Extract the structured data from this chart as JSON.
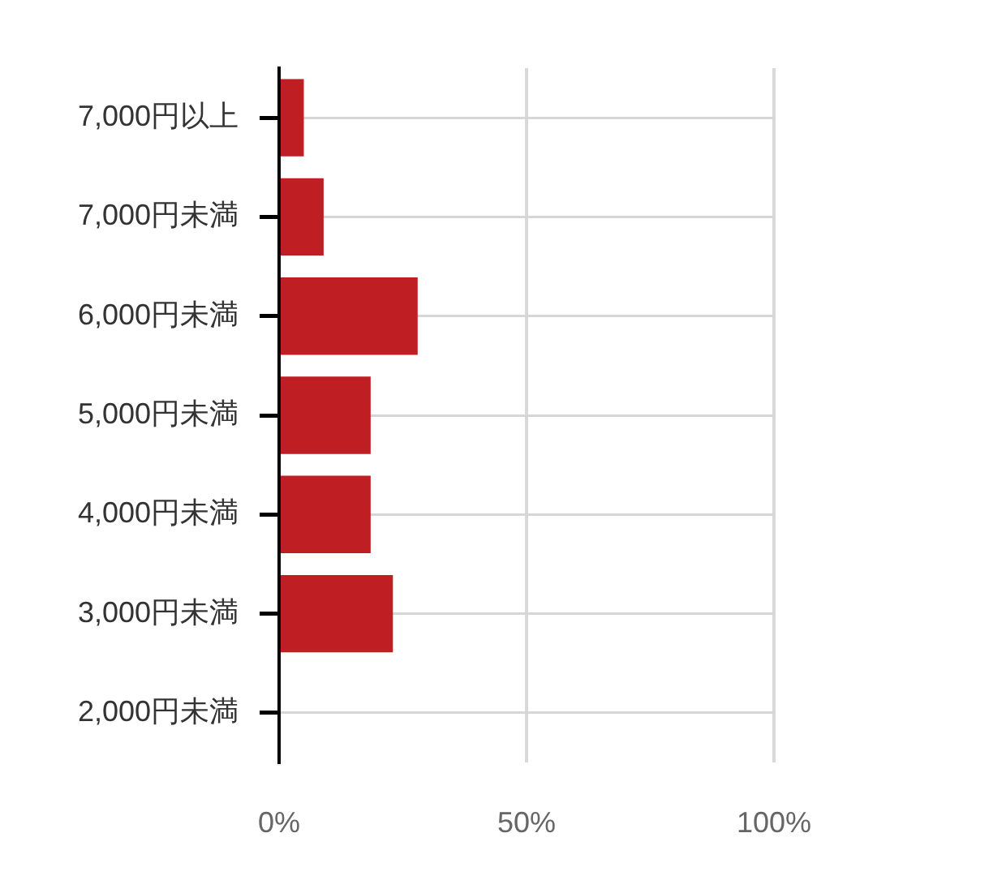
{
  "chart_data": {
    "type": "bar",
    "orientation": "horizontal",
    "categories": [
      "7,000円以上",
      "7,000円未満",
      "6,000円未満",
      "5,000円未満",
      "4,000円未満",
      "3,000円未満",
      "2,000円未満"
    ],
    "values": [
      5,
      9,
      28,
      18.5,
      18.5,
      23,
      0
    ],
    "color": "#bf1e22",
    "xlim": [
      0,
      100
    ],
    "xticks": [
      {
        "value": 0,
        "label": "0%"
      },
      {
        "value": 50,
        "label": "50%"
      },
      {
        "value": 100,
        "label": "100%"
      }
    ],
    "grid": true
  }
}
